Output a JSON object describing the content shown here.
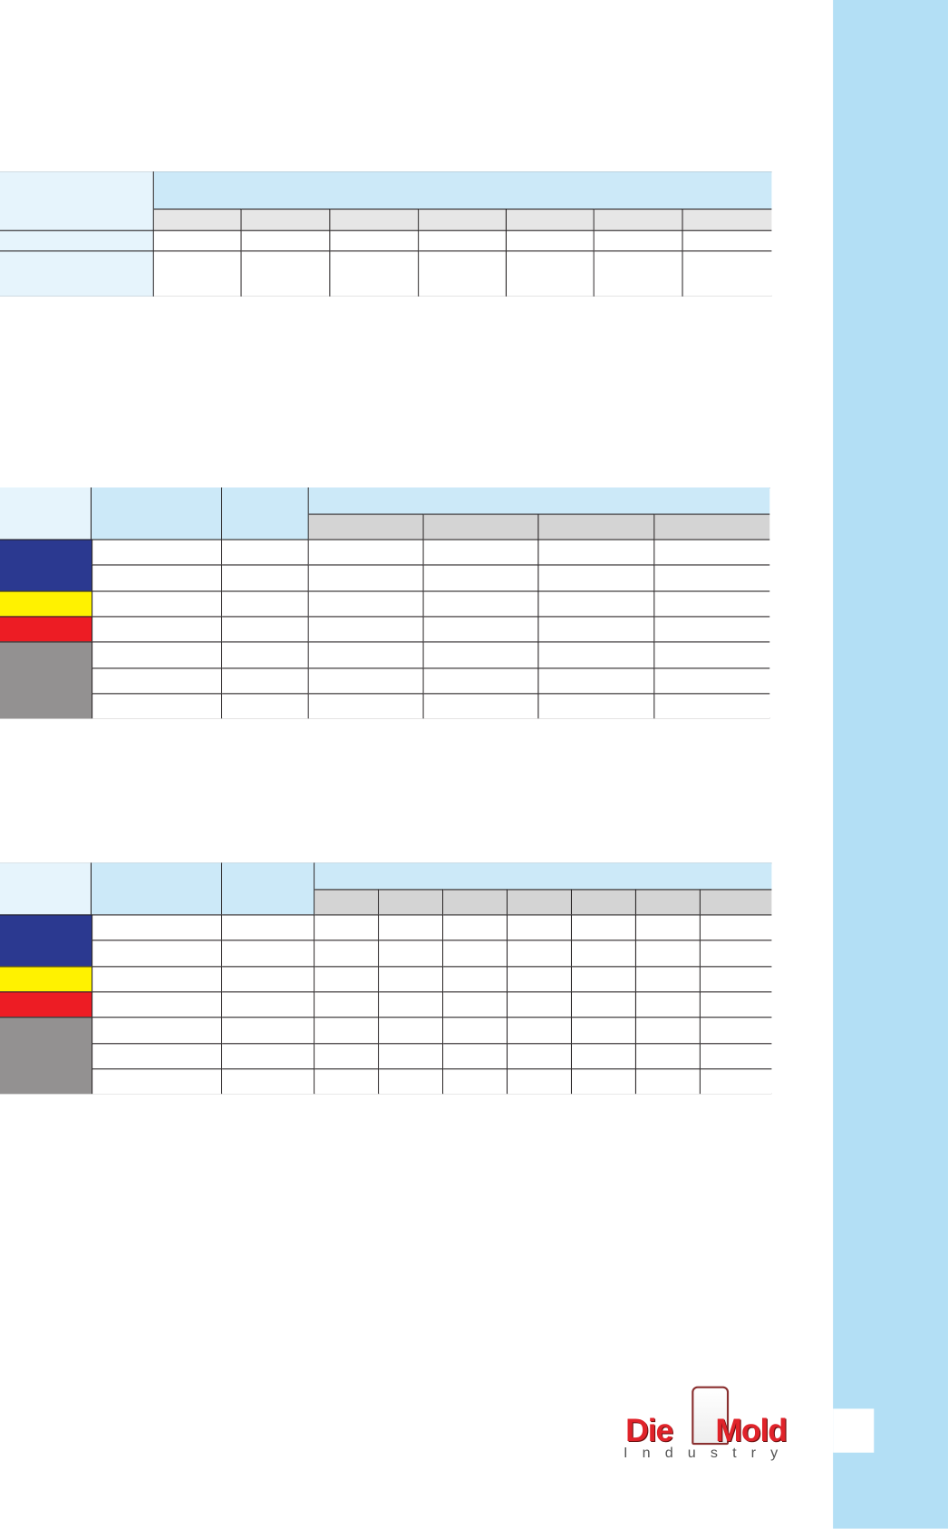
{
  "colors": {
    "sidebar": "#b3dff5",
    "header_band": "#cce9f8",
    "header_left": "#e6f4fc",
    "subheader_gray_1": "#e6e6e6",
    "subheader_gray_2": "#d4d4d4",
    "category_blue": "#2b3990",
    "category_yellow": "#fff200",
    "category_red": "#ed1c24",
    "category_gray": "#939191",
    "logo_red": "#e0232a"
  },
  "logo": {
    "word1": "Die",
    "word2": "Mold",
    "tagline": "Industry"
  }
}
